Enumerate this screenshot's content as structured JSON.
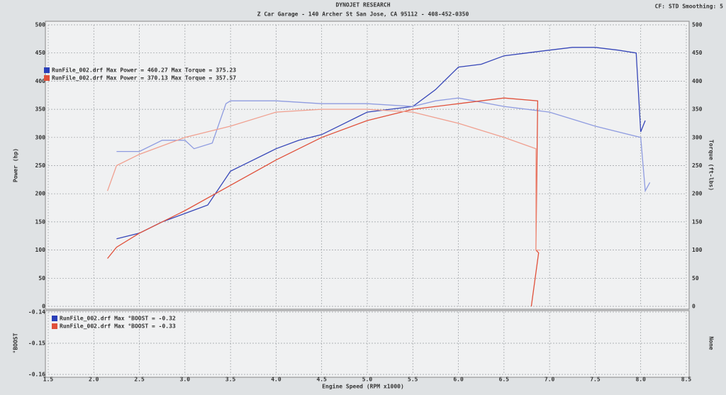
{
  "chart_data": {
    "type": "line",
    "title": "DYNOJET RESEARCH",
    "subtitle": "Z Car Garage - 140 Archer St San Jose, CA 95112 - 408-452-0350",
    "settings_text": "CF: STD  Smoothing: 5",
    "xlabel": "Engine Speed (RPM x1000)",
    "ylabel": "Power (hp)",
    "y2label": "Torque (ft-lbs)",
    "xlim": [
      1.5,
      8.5
    ],
    "xticks": [
      1.5,
      {
        "value": 2,
        "label": "2.0"
      },
      2.5,
      {
        "value": 3,
        "label": "3.0"
      },
      3.5,
      {
        "value": 4,
        "label": "4.0"
      },
      4.5,
      {
        "value": 5,
        "label": "5.0"
      },
      5.5,
      {
        "value": 6,
        "label": "6.0"
      },
      6.5,
      {
        "value": 7,
        "label": "7.0"
      },
      7.5,
      {
        "value": 8,
        "label": "8.0"
      },
      8.5
    ],
    "ylim": [
      0,
      500
    ],
    "yticks": [
      0,
      50,
      100,
      150,
      200,
      250,
      300,
      350,
      400,
      450,
      500
    ],
    "y2lim": [
      0,
      500
    ],
    "y2ticks": [
      0,
      50,
      100,
      150,
      200,
      250,
      300,
      350,
      400,
      450,
      500
    ],
    "grid": true,
    "legend": [
      {
        "text": "RunFile_002.drf Max Power = 460.27 Max Torque = 375.23",
        "color": "#2a3fb8"
      },
      {
        "text": "RunFile_002.drf Max Power = 370.13 Max Torque = 357.57",
        "color": "#e0503a"
      }
    ],
    "series": [
      {
        "color": "#3646b8",
        "x": [
          2.25,
          2.5,
          2.75,
          3.0,
          3.25,
          3.5,
          3.75,
          4.0,
          4.25,
          4.5,
          4.75,
          5.0,
          5.25,
          5.5,
          5.75,
          6.0,
          6.25,
          6.5,
          6.75,
          7.0,
          7.25,
          7.5,
          7.75,
          7.95,
          8.0,
          8.05
        ],
        "values": [
          120,
          130,
          150,
          165,
          180,
          240,
          260,
          280,
          295,
          305,
          325,
          345,
          350,
          355,
          385,
          425,
          430,
          445,
          450,
          455,
          460,
          460,
          455,
          450,
          310,
          330
        ]
      },
      {
        "color": "#8e9be0",
        "axis": "y2",
        "x": [
          2.25,
          2.5,
          2.75,
          3.0,
          3.1,
          3.3,
          3.45,
          3.5,
          4.0,
          4.5,
          5.0,
          5.5,
          5.75,
          6.0,
          6.5,
          7.0,
          7.5,
          8.0,
          8.05,
          8.1
        ],
        "values": [
          275,
          275,
          295,
          295,
          280,
          290,
          360,
          365,
          365,
          360,
          360,
          355,
          365,
          370,
          355,
          345,
          320,
          300,
          205,
          220
        ]
      },
      {
        "color": "#e0503a",
        "x": [
          2.15,
          2.25,
          2.5,
          3.0,
          3.5,
          4.0,
          4.5,
          5.0,
          5.5,
          6.0,
          6.5,
          6.87,
          6.85,
          6.88,
          6.8
        ],
        "values": [
          85,
          105,
          130,
          170,
          215,
          260,
          300,
          330,
          350,
          360,
          370,
          365,
          100,
          95,
          0
        ]
      },
      {
        "color": "#f0a090",
        "axis": "y2",
        "x": [
          2.15,
          2.25,
          2.5,
          3.0,
          3.5,
          4.0,
          4.5,
          5.0,
          5.5,
          6.0,
          6.5,
          6.85,
          6.85,
          6.9
        ],
        "values": [
          205,
          250,
          270,
          300,
          320,
          345,
          350,
          350,
          345,
          325,
          300,
          280,
          100,
          100
        ]
      }
    ],
    "boost": {
      "ylabel": "°BOOST",
      "y2label": "None",
      "ylim": [
        -0.16,
        -0.14
      ],
      "yticks": [
        -0.14,
        -0.15,
        -0.16
      ],
      "legend": [
        {
          "text": "RunFile_002.drf Max °BOOST = -0.32",
          "color": "#2a3fb8"
        },
        {
          "text": "RunFile_002.drf Max °BOOST = -0.33",
          "color": "#e0503a"
        }
      ]
    }
  }
}
